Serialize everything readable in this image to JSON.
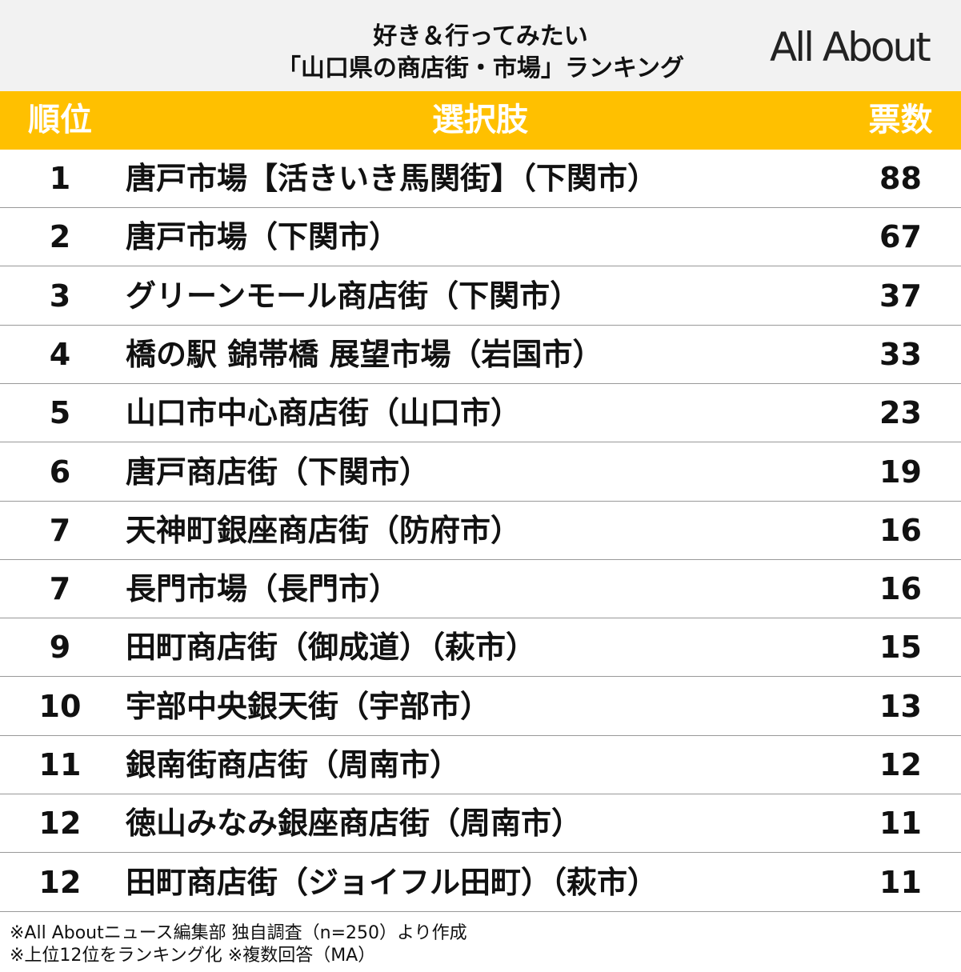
{
  "header": {
    "title_lines": [
      "好き＆行ってみたい",
      "「山口県の商店街・市場」ランキング"
    ],
    "logo": "All About"
  },
  "table": {
    "columns": [
      "順位",
      "選択肢",
      "票数"
    ],
    "rows": [
      [
        1,
        "唐戸市場【活きいき馬関街】（下関市）",
        88
      ],
      [
        2,
        "唐戸市場（下関市）",
        67
      ],
      [
        3,
        "グリーンモール商店街（下関市）",
        37
      ],
      [
        4,
        "橋の駅 錦帯橋 展望市場（岩国市）",
        33
      ],
      [
        5,
        "山口市中心商店街（山口市）",
        23
      ],
      [
        6,
        "唐戸商店街（下関市）",
        19
      ],
      [
        7,
        "天神町銀座商店街（防府市）",
        16
      ],
      [
        7,
        "長門市場（長門市）",
        16
      ],
      [
        9,
        "田町商店街（御成道）（萩市）",
        15
      ],
      [
        10,
        "宇部中央銀天街（宇部市）",
        13
      ],
      [
        11,
        "銀南街商店街（周南市）",
        12
      ],
      [
        12,
        "徳山みなみ銀座商店街（周南市）",
        11
      ],
      [
        12,
        "田町商店街（ジョイフル田町）（萩市）",
        11
      ]
    ]
  },
  "footnotes": [
    "※All Aboutニュース編集部 独自調査（n=250）より作成",
    "※上位12位をランキング化 ※複数回答（MA）"
  ]
}
